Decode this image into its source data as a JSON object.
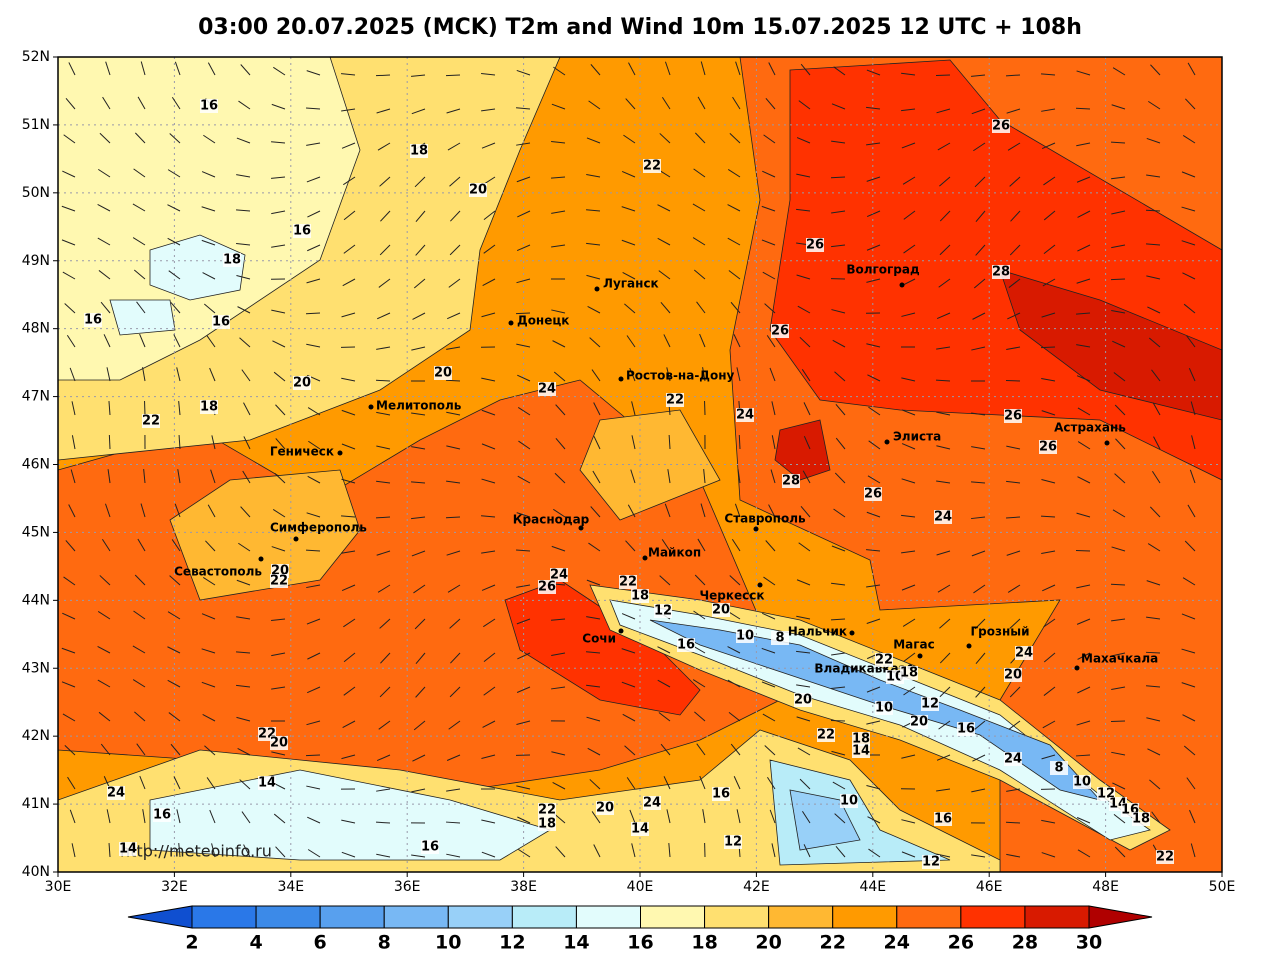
{
  "title": "03:00 20.07.2025 (MCK) T2m and Wind 10m 15.07.2025 12 UTC + 108h",
  "lat_labels": [
    "52N",
    "51N",
    "50N",
    "49N",
    "48N",
    "47N",
    "46N",
    "45N",
    "44N",
    "43N",
    "42N",
    "41N",
    "40N"
  ],
  "lon_labels": [
    "30E",
    "32E",
    "34E",
    "36E",
    "38E",
    "40E",
    "42E",
    "44E",
    "46E",
    "48E",
    "50E"
  ],
  "cities": [
    "Луганск",
    "Донецк",
    "Ростов-на-Дону",
    "Мелитополь",
    "Геническ",
    "Симферополь",
    "Севастополь",
    "Краснодар",
    "Майкоп",
    "Сочи",
    "Черкесск",
    "Ставрополь",
    "Нальчик",
    "Магас",
    "Владикавказ",
    "Грозный",
    "Махачкала",
    "Волгоград",
    "Элиста",
    "Астрахань"
  ],
  "contour_labels": [
    16,
    18,
    20,
    16,
    18,
    16,
    16,
    20,
    20,
    18,
    22,
    22,
    26,
    26,
    28,
    26,
    24,
    22,
    24,
    26,
    26,
    28,
    26,
    24,
    20,
    22,
    24,
    26,
    22,
    18,
    12,
    20,
    16,
    10,
    8,
    22,
    10,
    18,
    24,
    20,
    12,
    10,
    20,
    16,
    20,
    22,
    18,
    14,
    22,
    20,
    14,
    24,
    16,
    22,
    18,
    20,
    24,
    16,
    14,
    10,
    16,
    12,
    16,
    12,
    24,
    8,
    10,
    12,
    14,
    16,
    18,
    22,
    14
  ],
  "watermark": "http://meteoinfo.ru",
  "colorbar": {
    "levels": [
      2,
      4,
      6,
      8,
      10,
      12,
      14,
      16,
      18,
      20,
      22,
      24,
      26,
      28,
      30
    ],
    "colors": [
      "#0f4fd0",
      "#2a78e8",
      "#3c8ae8",
      "#58a0ee",
      "#78b8f4",
      "#98d0f8",
      "#b8ecf8",
      "#e2fcfc",
      "#fff8b0",
      "#ffe070",
      "#ffb832",
      "#ff9a00",
      "#ff6a10",
      "#ff3200",
      "#d81a00",
      "#b00000"
    ]
  }
}
